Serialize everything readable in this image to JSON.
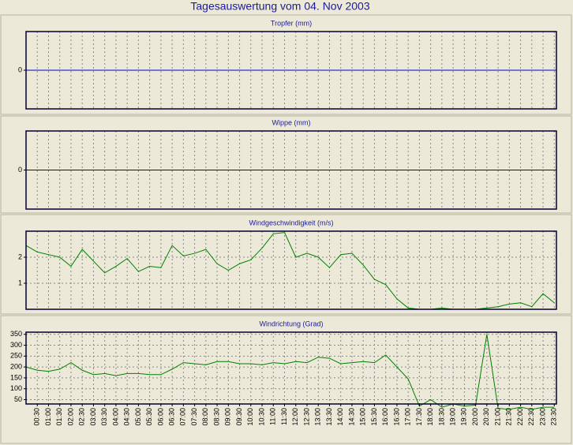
{
  "title": "Tagesauswertung vom 04. Nov 2003",
  "chart_data": [
    {
      "type": "line",
      "title": "Tropfer (mm)",
      "ylim": [
        -1,
        1
      ],
      "yticks": [
        0
      ],
      "zero_line_color": "#0000cc",
      "grid": true
    },
    {
      "type": "line",
      "title": "Wippe (mm)",
      "ylim": [
        -1,
        1
      ],
      "yticks": [
        0
      ],
      "zero_line_color": "#0000cc",
      "grid": true
    },
    {
      "type": "line",
      "title": "Windgeschwindigkeit (m/s)",
      "ylim": [
        0,
        3
      ],
      "yticks": [
        1,
        2
      ],
      "grid": true,
      "series": [
        {
          "color": "#008000",
          "values": [
            2.45,
            2.2,
            2.1,
            2.0,
            1.65,
            2.3,
            1.85,
            1.4,
            1.65,
            1.95,
            1.45,
            1.65,
            1.6,
            2.45,
            2.05,
            2.15,
            2.3,
            1.75,
            1.5,
            1.75,
            1.9,
            2.35,
            2.9,
            2.95,
            2.0,
            2.15,
            2.0,
            1.6,
            2.1,
            2.15,
            1.7,
            1.15,
            0.95,
            0.4,
            0.05,
            0,
            0,
            0.05,
            0,
            0,
            0,
            0.05,
            0.1,
            0.2,
            0.25,
            0.1,
            0.6,
            0.25
          ]
        }
      ]
    },
    {
      "type": "line",
      "title": "Windrichtung (Grad)",
      "ylim": [
        30,
        360
      ],
      "yticks": [
        50,
        100,
        150,
        200,
        250,
        300,
        350
      ],
      "grid": true,
      "categories": [
        null,
        "00:30",
        "01:00",
        "01:30",
        "02:00",
        "02:30",
        "03:00",
        "03:30",
        "04:00",
        "04:30",
        "05:00",
        "05:30",
        "06:00",
        "06:30",
        "07:00",
        "07:30",
        "08:00",
        "08:30",
        "09:00",
        "09:30",
        "10:00",
        "10:30",
        "11:00",
        "11:30",
        "12:00",
        "12:30",
        "13:00",
        "13:30",
        "14:00",
        "14:30",
        "15:00",
        "15:30",
        "16:00",
        "16:30",
        "17:00",
        "17:30",
        "18:00",
        "18:30",
        "19:00",
        "19:30",
        "20:00",
        "20:30",
        "21:00",
        "21:30",
        "22:00",
        "22:30",
        "23:00",
        "23:30"
      ],
      "series": [
        {
          "color": "#008000",
          "values": [
            200,
            185,
            180,
            190,
            220,
            185,
            165,
            170,
            160,
            170,
            170,
            165,
            165,
            190,
            220,
            215,
            210,
            225,
            225,
            215,
            215,
            210,
            220,
            215,
            225,
            220,
            245,
            240,
            215,
            220,
            225,
            220,
            255,
            200,
            145,
            20,
            50,
            15,
            30,
            20,
            25,
            350,
            10,
            5,
            15,
            5,
            15,
            15
          ]
        }
      ]
    }
  ]
}
